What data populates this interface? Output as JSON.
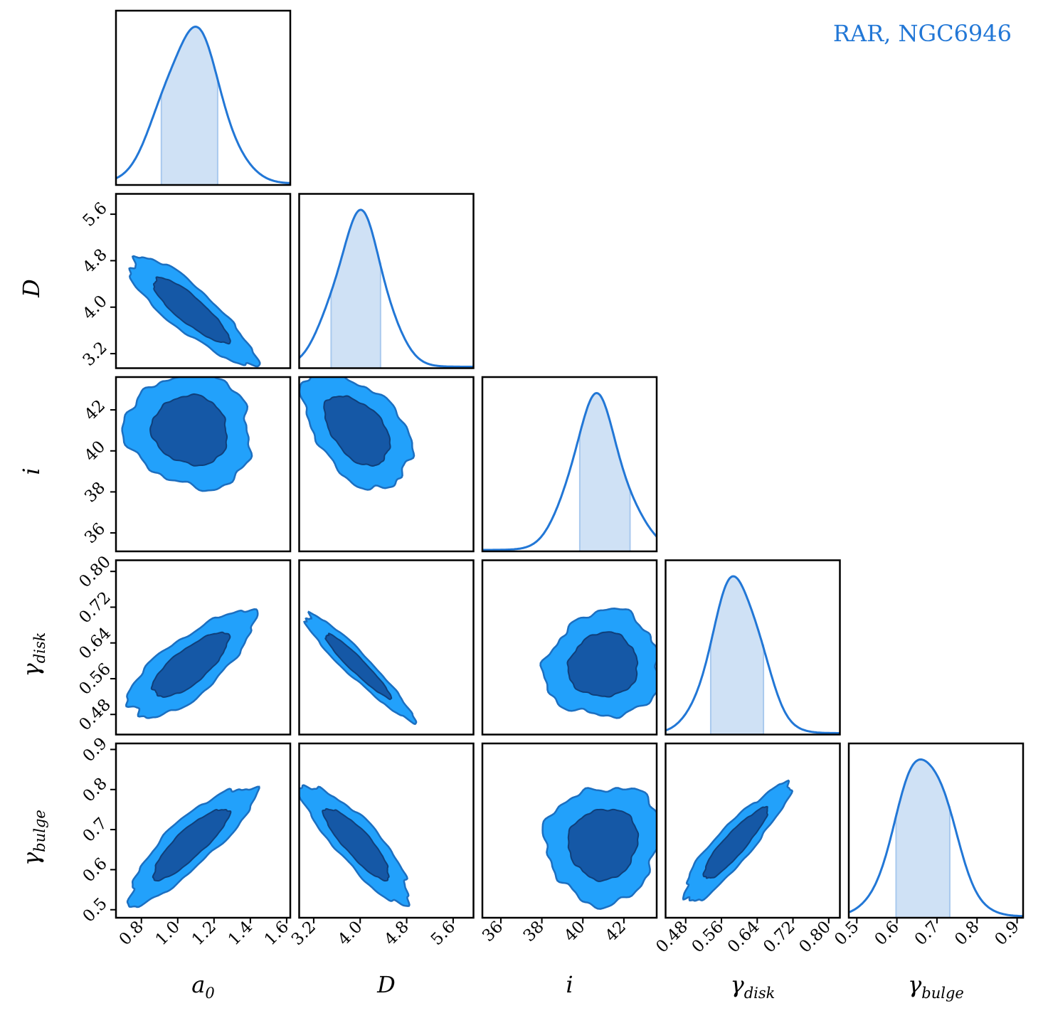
{
  "chart_data": {
    "type": "corner",
    "legend": {
      "text": "RAR, NGC6946",
      "color": "#2277d6",
      "placement": "top-right"
    },
    "colors": {
      "line": "#2277d6",
      "fill_hist": "#cfe1f5",
      "shade_line": "#a9c9ee",
      "contour_outer": "#22a1fb",
      "contour_inner": "#1558a6",
      "contour_edge": "#1c6fc0"
    },
    "parameters": [
      {
        "name": "a",
        "sub": "0",
        "range": [
          0.66,
          1.62
        ],
        "ticks": [
          "0.8",
          "1.0",
          "1.2",
          "1.4",
          "1.6"
        ],
        "tick_values": [
          0.8,
          1.0,
          1.2,
          1.4,
          1.6
        ],
        "mean": 1.07,
        "sigma": 0.16,
        "ci68": [
          0.91,
          1.22
        ]
      },
      {
        "name": "D",
        "sub": "",
        "range": [
          2.95,
          5.95
        ],
        "ticks": [
          "3.2",
          "4.0",
          "4.8",
          "5.6"
        ],
        "tick_values": [
          3.2,
          4.0,
          4.8,
          5.6
        ],
        "mean": 3.95,
        "sigma": 0.43,
        "ci68": [
          3.5,
          4.35
        ]
      },
      {
        "name": "i",
        "sub": "",
        "range": [
          35.1,
          43.6
        ],
        "ticks": [
          "36",
          "38",
          "40",
          "42"
        ],
        "tick_values": [
          36,
          38,
          40,
          42
        ],
        "mean": 41.0,
        "sigma": 1.3,
        "ci68": [
          39.85,
          42.3
        ]
      },
      {
        "name": "γ",
        "sub": "disk",
        "range": [
          0.435,
          0.825
        ],
        "ticks": [
          "0.48",
          "0.56",
          "0.64",
          "0.72",
          "0.80"
        ],
        "tick_values": [
          0.48,
          0.56,
          0.64,
          0.72,
          0.8
        ],
        "mean": 0.59,
        "sigma": 0.055,
        "ci68": [
          0.536,
          0.654
        ]
      },
      {
        "name": "γ",
        "sub": "bulge",
        "range": [
          0.48,
          0.915
        ],
        "ticks": [
          "0.5",
          "0.6",
          "0.7",
          "0.8",
          "0.9"
        ],
        "tick_values": [
          0.5,
          0.6,
          0.7,
          0.8,
          0.9
        ],
        "mean": 0.665,
        "sigma": 0.068,
        "ci68": [
          0.598,
          0.732
        ]
      }
    ],
    "correlations": [
      [
        1.0,
        -0.86,
        -0.08,
        0.76,
        0.86
      ],
      [
        -0.86,
        1.0,
        -0.46,
        -0.95,
        -0.86
      ],
      [
        -0.08,
        -0.46,
        1.0,
        0.05,
        0.06
      ],
      [
        0.76,
        -0.95,
        0.05,
        1.0,
        0.9
      ],
      [
        0.86,
        -0.86,
        0.06,
        0.9,
        1.0
      ]
    ]
  }
}
